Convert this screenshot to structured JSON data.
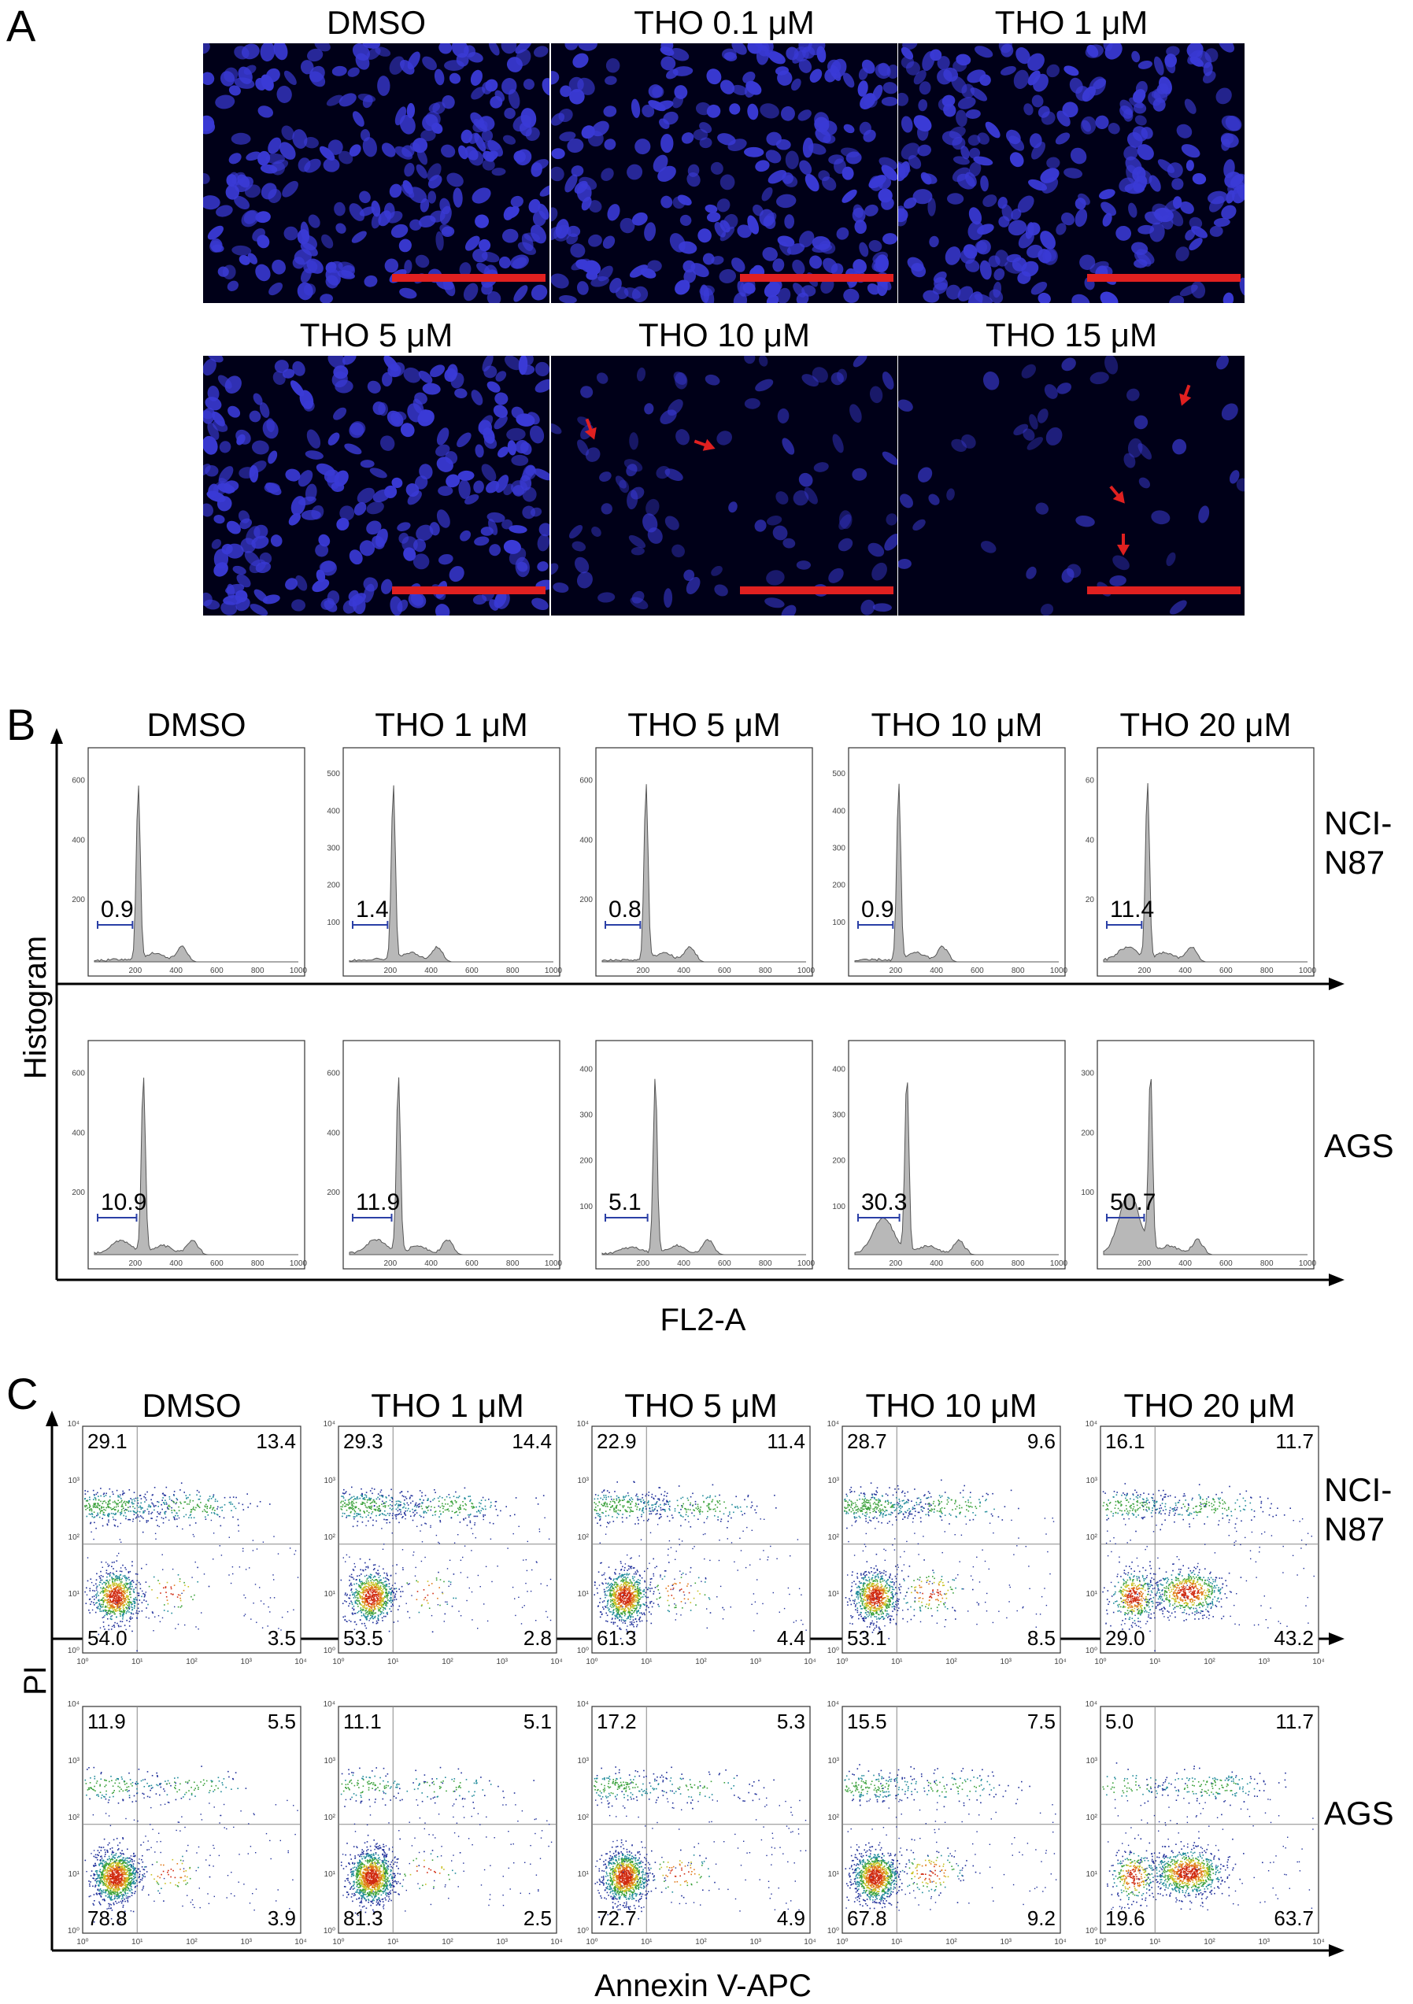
{
  "panel_a": {
    "letter": "A",
    "labels": [
      "DMSO",
      "THO 0.1 μM",
      "THO 1 μM",
      "THO 5 μM",
      "THO 10 μM",
      "THO 15 μM"
    ],
    "density": [
      1.0,
      1.0,
      1.0,
      1.0,
      0.35,
      0.18
    ],
    "arrow_images": [
      4,
      5
    ],
    "colors": {
      "nucleus": "#3a3ad6",
      "background": "#000018",
      "scale_bar": "#e02020",
      "arrow": "#e02020"
    }
  },
  "panel_b": {
    "letter": "B",
    "labels": [
      "DMSO",
      "THO 1 μM",
      "THO 5 μM",
      "THO 10 μM",
      "THO 20 μM"
    ],
    "row_labels": [
      "NCI-\nN87",
      "AGS"
    ],
    "x_axis_label": "FL2-A",
    "y_axis_label": "Histogram",
    "x_ticks": [
      "200",
      "400",
      "600",
      "800",
      "1000"
    ],
    "rows": [
      {
        "name": "NCI-N87",
        "sub_g1": [
          "0.9",
          "1.4",
          "0.8",
          "0.9",
          "11.4"
        ],
        "y_ticks": [
          [
            "200",
            "400",
            "600"
          ],
          [
            "100",
            "200",
            "300",
            "400",
            "500"
          ],
          [
            "200",
            "400",
            "600"
          ],
          [
            "100",
            "200",
            "300",
            "400",
            "500"
          ],
          [
            "20",
            "40",
            "60"
          ]
        ]
      },
      {
        "name": "AGS",
        "sub_g1": [
          "10.9",
          "11.9",
          "5.1",
          "30.3",
          "50.7"
        ],
        "y_ticks": [
          [
            "200",
            "400",
            "600"
          ],
          [
            "200",
            "400",
            "600"
          ],
          [
            "100",
            "200",
            "300",
            "400"
          ],
          [
            "100",
            "200",
            "300",
            "400"
          ],
          [
            "100",
            "200",
            "300"
          ]
        ]
      }
    ]
  },
  "panel_c": {
    "letter": "C",
    "labels": [
      "DMSO",
      "THO 1 μM",
      "THO 5 μM",
      "THO 10 μM",
      "THO 20 μM"
    ],
    "row_labels": [
      "NCI-\nN87",
      "AGS"
    ],
    "x_axis_label": "Annexin V-APC",
    "y_axis_label": "PI",
    "log_ticks": [
      "10⁰",
      "10¹",
      "10²",
      "10³",
      "10⁴"
    ],
    "quadrant_order": [
      "upper-left",
      "upper-right",
      "lower-left",
      "lower-right"
    ],
    "rows": [
      {
        "name": "NCI-N87",
        "quadrants": [
          [
            "29.1",
            "13.4",
            "54.0",
            "3.5"
          ],
          [
            "29.3",
            "14.4",
            "53.5",
            "2.8"
          ],
          [
            "22.9",
            "11.4",
            "61.3",
            "4.4"
          ],
          [
            "28.7",
            "9.6",
            "53.1",
            "8.5"
          ],
          [
            "16.1",
            "11.7",
            "29.0",
            "43.2"
          ]
        ]
      },
      {
        "name": "AGS",
        "quadrants": [
          [
            "11.9",
            "5.5",
            "78.8",
            "3.9"
          ],
          [
            "11.1",
            "5.1",
            "81.3",
            "2.5"
          ],
          [
            "17.2",
            "5.3",
            "72.7",
            "4.9"
          ],
          [
            "15.5",
            "7.5",
            "67.8",
            "9.2"
          ],
          [
            "5.0",
            "11.7",
            "19.6",
            "63.7"
          ]
        ]
      }
    ]
  }
}
